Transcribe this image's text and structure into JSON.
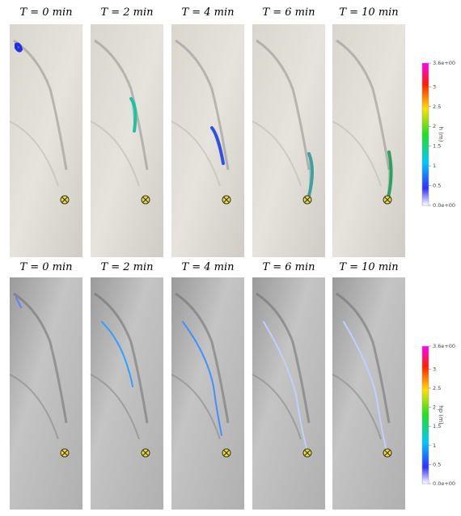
{
  "rows": [
    {
      "panels": [
        {
          "title": "T = 0 min"
        },
        {
          "title": "T = 2 min"
        },
        {
          "title": "T = 4 min"
        },
        {
          "title": "T = 6 min"
        },
        {
          "title": "T = 10 min"
        }
      ]
    },
    {
      "panels": [
        {
          "title": "T = 0 min"
        },
        {
          "title": "T = 2 min"
        },
        {
          "title": "T = 4 min"
        },
        {
          "title": "T = 6 min"
        },
        {
          "title": "T = 10 min"
        }
      ]
    }
  ],
  "colorbars": [
    {
      "label": "h (m)",
      "range": [
        0,
        3.6
      ],
      "ticks": [
        {
          "value": 3.6,
          "label": "3.6e+00"
        },
        3,
        2.5,
        2,
        1.5,
        1,
        0.5,
        {
          "value": 0,
          "label": "0.0e+00"
        }
      ]
    },
    {
      "label": "hp (m)",
      "range": [
        0,
        3.6
      ],
      "ticks": [
        {
          "value": 3.6,
          "label": "3.6e+00"
        },
        3,
        2.5,
        2,
        1.5,
        1,
        0.5,
        {
          "value": 0,
          "label": "0.0e+00"
        }
      ]
    }
  ]
}
